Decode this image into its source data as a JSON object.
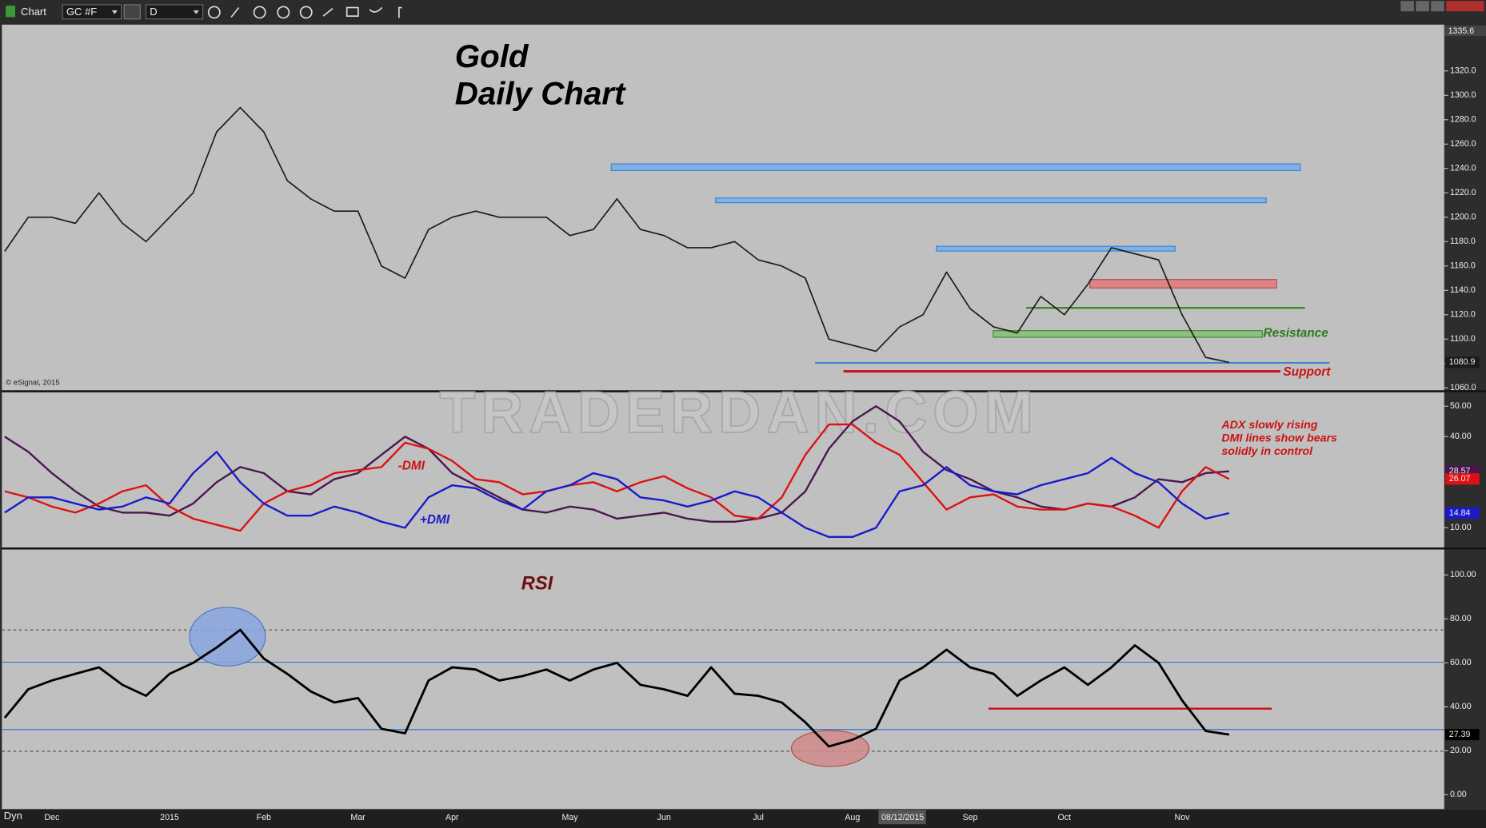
{
  "toolbar": {
    "title": "Chart",
    "symbol": "GC #F",
    "interval": "D"
  },
  "footer": {
    "mode": "Dyn",
    "cursor_date": "08/12/2015"
  },
  "copyright": "© eSignal, 2015",
  "watermark": "TRADERDAN.COM",
  "chart_data": [
    {
      "type": "line",
      "title": "Gold",
      "subtitle": "Daily Chart",
      "axis_top_label": "1335.6",
      "annotations": [
        "Resistance",
        "Support"
      ],
      "color": "#1a1a1a",
      "values": [
        1172,
        1200,
        1200,
        1195,
        1220,
        1195,
        1180,
        1200,
        1220,
        1270,
        1290,
        1270,
        1230,
        1215,
        1205,
        1205,
        1160,
        1150,
        1190,
        1200,
        1205,
        1200,
        1200,
        1200,
        1185,
        1190,
        1215,
        1190,
        1185,
        1175,
        1175,
        1180,
        1165,
        1160,
        1150,
        1100,
        1095,
        1090,
        1110,
        1120,
        1155,
        1125,
        1110,
        1105,
        1135,
        1120,
        1145,
        1175,
        1170,
        1165,
        1120,
        1085,
        1080.9
      ],
      "ylim": [
        1058,
        1358
      ],
      "yticks": [
        {
          "value": 1060,
          "label": "1060.0"
        },
        {
          "value": 1080,
          "label": "1080.0"
        },
        {
          "value": 1100,
          "label": "1100.0"
        },
        {
          "value": 1120,
          "label": "1120.0"
        },
        {
          "value": 1140,
          "label": "1140.0"
        },
        {
          "value": 1160,
          "label": "1160.0"
        },
        {
          "value": 1180,
          "label": "1180.0"
        },
        {
          "value": 1200,
          "label": "1200.0"
        },
        {
          "value": 1220,
          "label": "1220.0"
        },
        {
          "value": 1240,
          "label": "1240.0"
        },
        {
          "value": 1260,
          "label": "1260.0"
        },
        {
          "value": 1280,
          "label": "1280.0"
        },
        {
          "value": 1300,
          "label": "1300.0"
        },
        {
          "value": 1320,
          "label": "1320.0"
        }
      ]
    },
    {
      "type": "line",
      "annotations": [
        "ADX slowly rising",
        "DMI lines show bears",
        "solidly in control"
      ],
      "series": [
        {
          "color": "#4a1650",
          "values": [
            40,
            35,
            28,
            22,
            17,
            15,
            15,
            14,
            18,
            25,
            30,
            28,
            22,
            21,
            26,
            28,
            34,
            40,
            36,
            28,
            24,
            20,
            16,
            15,
            17,
            16,
            13,
            14,
            15,
            13,
            12,
            12,
            13,
            15,
            22,
            36,
            45,
            50,
            45,
            35,
            29,
            26,
            22,
            20,
            17,
            16,
            18,
            17,
            20,
            26,
            25,
            28,
            28.57
          ]
        },
        {
          "name": "-DMI",
          "color": "#dd1111",
          "values": [
            22,
            20,
            17,
            15,
            18,
            22,
            24,
            17,
            13,
            11,
            9,
            18,
            22,
            24,
            28,
            29,
            30,
            38,
            36,
            32,
            26,
            25,
            21,
            22,
            24,
            25,
            22,
            25,
            27,
            23,
            20,
            14,
            13,
            20,
            34,
            44,
            44,
            38,
            34,
            25,
            16,
            20,
            21,
            17,
            16,
            16,
            18,
            17,
            14,
            10,
            22,
            30,
            26.07
          ]
        },
        {
          "name": "+DMI",
          "color": "#1a1acc",
          "values": [
            15,
            20,
            20,
            18,
            16,
            17,
            20,
            18,
            28,
            35,
            25,
            18,
            14,
            14,
            17,
            15,
            12,
            10,
            20,
            24,
            23,
            19,
            16,
            22,
            24,
            28,
            26,
            20,
            19,
            17,
            19,
            22,
            20,
            15,
            10,
            7,
            7,
            10,
            22,
            24,
            30,
            24,
            22,
            21,
            24,
            26,
            28,
            33,
            28,
            25,
            18,
            13,
            14.84
          ]
        }
      ],
      "ylim": [
        3.5,
        54.6
      ],
      "yticks": [
        {
          "value": 10,
          "label": "10.00"
        },
        {
          "value": 40,
          "label": "40.00"
        },
        {
          "value": 50,
          "label": "50.00"
        }
      ]
    },
    {
      "type": "line",
      "title": "RSI",
      "color": "#000000",
      "categories": [
        null,
        null,
        "Dec",
        null,
        null,
        null,
        null,
        "2015",
        null,
        null,
        null,
        "Feb",
        null,
        null,
        null,
        "Mar",
        null,
        null,
        null,
        "Apr",
        null,
        null,
        null,
        null,
        "May",
        null,
        null,
        null,
        "Jun",
        null,
        null,
        null,
        "Jul",
        null,
        null,
        null,
        "Aug",
        null,
        null,
        null,
        null,
        "Sep",
        null,
        null,
        null,
        "Oct",
        null,
        null,
        null,
        null,
        "Nov",
        null,
        null
      ],
      "values": [
        35,
        48,
        52,
        55,
        58,
        50,
        45,
        55,
        60,
        67,
        75,
        62,
        55,
        47,
        42,
        44,
        30,
        28,
        52,
        58,
        57,
        52,
        54,
        57,
        52,
        57,
        60,
        50,
        48,
        45,
        58,
        46,
        45,
        42,
        33,
        22,
        25,
        30,
        52,
        58,
        66,
        58,
        55,
        45,
        52,
        58,
        50,
        58,
        68,
        60,
        43,
        29,
        27.39
      ],
      "ylim": [
        -6.5,
        111.6
      ],
      "yticks": [
        {
          "value": 0,
          "label": "0.00"
        },
        {
          "value": 20,
          "label": "20.00"
        },
        {
          "value": 40,
          "label": "40.00"
        },
        {
          "value": 60,
          "label": "60.00"
        },
        {
          "value": 80,
          "label": "80.00"
        },
        {
          "value": 100,
          "label": "100.00"
        }
      ]
    }
  ]
}
